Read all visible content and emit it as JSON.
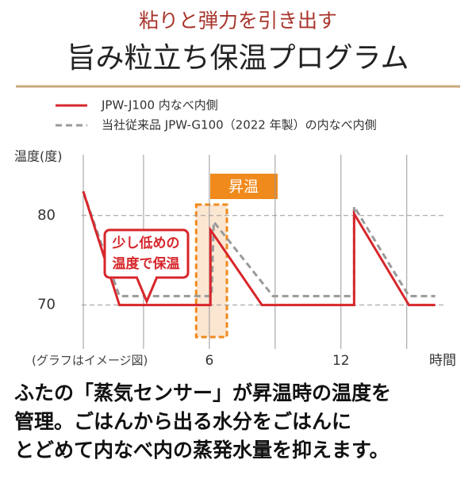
{
  "header": {
    "subtitle": "粘りと弾力を引き出す",
    "title": "旨み粒立ち保温プログラム"
  },
  "chart_data": {
    "type": "line",
    "y_label": "温度(度)",
    "x_label": "時間",
    "note": "(グラフはイメージ図)",
    "xlim": [
      0,
      17
    ],
    "xticks": [
      6,
      12
    ],
    "xgrid": [
      3,
      6,
      9,
      12,
      15
    ],
    "ylim": [
      65.1,
      86.8
    ],
    "yticks": [
      70,
      80
    ],
    "series": [
      {
        "name": "JPW-J100 内なべ内側",
        "color": "#d7262b",
        "dash": false,
        "x": [
          0.25,
          1.9,
          6.05,
          6.05,
          8.4,
          12.6,
          12.6,
          15.1,
          16.3
        ],
        "values": [
          82.7,
          70,
          70,
          78.4,
          70,
          70,
          80.2,
          70,
          70
        ]
      },
      {
        "name": "当社従来品 JPW-G100（2022 年製）の内なべ内側",
        "color": "#9a9a9a",
        "dash": true,
        "x": [
          0.25,
          1.9,
          6.1,
          6.2,
          8.9,
          12.6,
          12.6,
          15.1,
          16.3
        ],
        "values": [
          82.7,
          71,
          71,
          79.3,
          71,
          71,
          81,
          71,
          71
        ]
      }
    ],
    "highlight": {
      "label": "昇温",
      "x": [
        5.4,
        6.8
      ]
    },
    "annotation": [
      "少し低めの",
      "温度で保温"
    ]
  },
  "body": [
    "ふたの「蒸気センサー」が昇温時の温度を",
    "管理。ごはんから出る水分をごはんに",
    "とどめて内なべ内の蒸発水量を抑えます。"
  ]
}
